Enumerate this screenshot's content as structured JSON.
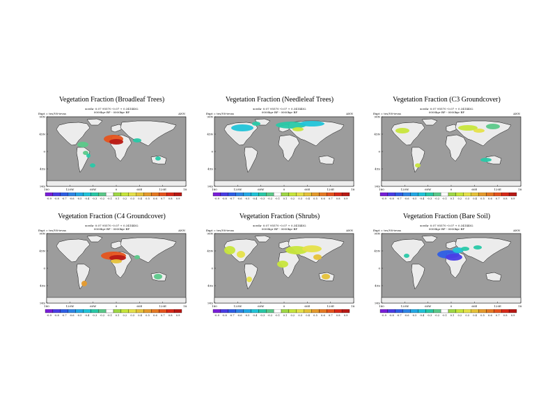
{
  "colors": {
    "ocean": "#9c9c9c",
    "land": "#ececec",
    "scale": [
      "#7a1fd9",
      "#4a3ee6",
      "#2f5fe6",
      "#2f86e6",
      "#24a9e6",
      "#22c4d9",
      "#29c9a8",
      "#5cc98a",
      "#ffffff",
      "#a0d846",
      "#c8e63c",
      "#e6e14a",
      "#e6c23a",
      "#e69b2e",
      "#e67a24",
      "#e6541e",
      "#d92a1a",
      "#b81a16"
    ]
  },
  "axes": {
    "y_ticks": [
      "90N",
      "45N",
      "0",
      "45S",
      "90S"
    ],
    "x_ticks": [
      "180",
      "120W",
      "60W",
      "0",
      "60E",
      "120E",
      "180"
    ]
  },
  "panels": [
    {
      "title": "Vegetation Fraction (Broadleaf Trees)",
      "meta1": "xceda- 0.07 95570 -0.07 + 0.3414402",
      "meta2": "0000kyr BP - 0000kyr BP",
      "expt": "Expt = tes/V6-tevas",
      "season": "ANN",
      "cb_labels": [
        "-0.9",
        "-0.8",
        "-0.7",
        "-0.6",
        "-0.5",
        "-0.4",
        "-0.3",
        "-0.2",
        "-0.1",
        "0.1",
        "0.2",
        "0.3",
        "0.4",
        "0.5",
        "0.6",
        "0.7",
        "0.8",
        "0.9"
      ]
    },
    {
      "title": "Vegetation Fraction (Needleleaf Trees)",
      "meta1": "xceda- 0.07 95570 -0.07 + 0.3414402",
      "meta2": "0000kyr BP - 0000kyr BP",
      "expt": "Expt = tes/V6-tevas",
      "season": "ANN",
      "cb_labels": [
        "-0.9",
        "-0.8",
        "-0.7",
        "-0.6",
        "-0.5",
        "-0.4",
        "-0.3",
        "-0.2",
        "-0.1",
        "0.1",
        "0.2",
        "0.3",
        "0.4",
        "0.5",
        "0.6",
        "0.7",
        "0.8",
        "0.9"
      ]
    },
    {
      "title": "Vegetation Fraction (C3 Groundcover)",
      "meta1": "xceda- 0.07 95570 -0.07 + 0.3414402",
      "meta2": "0000kyr BP - 0000kyr BP",
      "expt": "Expt = tes/V6-tevas",
      "season": "ANN",
      "cb_labels": [
        "-0.9",
        "-0.8",
        "-0.7",
        "-0.6",
        "-0.5",
        "-0.4",
        "-0.3",
        "-0.2",
        "-0.1",
        "0.1",
        "0.2",
        "0.3",
        "0.4",
        "0.5",
        "0.6",
        "0.7",
        "0.8",
        "0.9"
      ]
    },
    {
      "title": "Vegetation Fraction (C4 Groundcover)",
      "meta1": "xceda- 0.07 95570 -0.07 + 0.3414402",
      "meta2": "0000kyr BP - 0000kyr BP",
      "expt": "Expt = tes/V6-tevas",
      "season": "ANN",
      "cb_labels": [
        "-0.9",
        "-0.8",
        "-0.7",
        "-0.6",
        "-0.5",
        "-0.4",
        "-0.3",
        "-0.2",
        "-0.1",
        "0.1",
        "0.2",
        "0.3",
        "0.4",
        "0.5",
        "0.6",
        "0.7",
        "0.8",
        "0.9"
      ]
    },
    {
      "title": "Vegetation Fraction (Shrubs)",
      "meta1": "xceda- 0.07 95570 -0.07 + 0.3414402",
      "meta2": "0000kyr BP - 0000kyr BP",
      "expt": "Expt = tes/V6-tevas",
      "season": "ANN",
      "cb_labels": [
        "-0.9",
        "-0.8",
        "-0.7",
        "-0.6",
        "-0.5",
        "-0.4",
        "-0.3",
        "-0.2",
        "-0.1",
        "0.1",
        "0.2",
        "0.3",
        "0.4",
        "0.5",
        "0.6",
        "0.7",
        "0.8",
        "0.9"
      ]
    },
    {
      "title": "Vegetation Fraction (Bare Soil)",
      "meta1": "xceda- 0.07 95570 -0.07 + 0.3414402",
      "meta2": "0000kyr BP - 0000kyr BP",
      "expt": "Expt = tes/V6-tevas",
      "season": "ANN",
      "cb_labels": [
        "-0.9",
        "-0.8",
        "-0.7",
        "-0.6",
        "-0.5",
        "-0.4",
        "-0.3",
        "-0.2",
        "-0.1",
        "0.1",
        "0.2",
        "0.3",
        "0.4",
        "0.5",
        "0.6",
        "0.7",
        "0.8",
        "0.9"
      ]
    }
  ]
}
